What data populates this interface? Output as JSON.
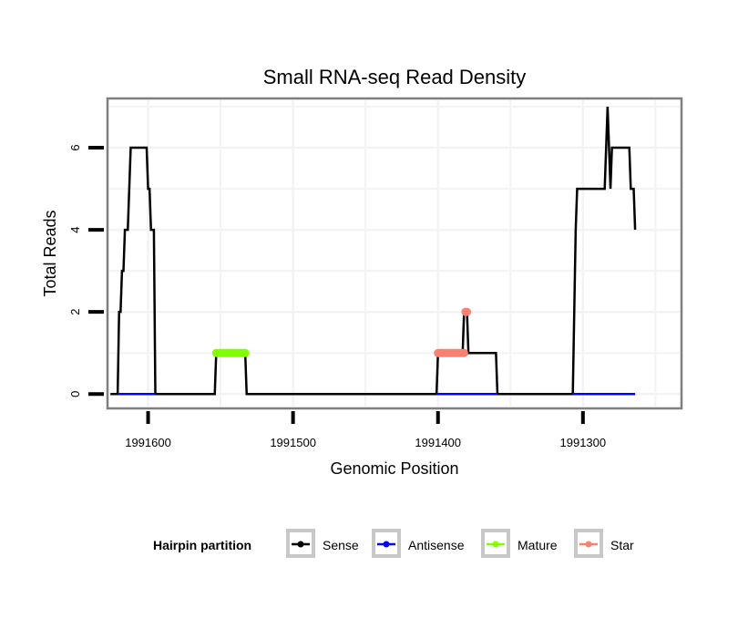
{
  "chart_data": {
    "type": "line",
    "title": "Small RNA-seq Read Density",
    "xlabel": "Genomic Position",
    "ylabel": "Total Reads",
    "x_reversed": true,
    "xlim": [
      1991628,
      1991232
    ],
    "ylim": [
      -0.35,
      7.2
    ],
    "xticks": [
      1991600,
      1991500,
      1991400,
      1991300
    ],
    "xtick_labels": [
      "1991600",
      "1991500",
      "1991400",
      "1991300"
    ],
    "yticks": [
      0,
      2,
      4,
      6
    ],
    "ytick_labels": [
      "0",
      "2",
      "4",
      "6"
    ],
    "grid": true,
    "legend": {
      "title": "Hairpin partition",
      "position": "bottom",
      "entries": [
        {
          "name": "Sense",
          "color": "#000000"
        },
        {
          "name": "Antisense",
          "color": "#0000ff"
        },
        {
          "name": "Mature",
          "color": "#80ff00"
        },
        {
          "name": "Star",
          "color": "#fa8072"
        }
      ]
    },
    "series": [
      {
        "name": "Sense",
        "color": "#000000",
        "points": [
          [
            1991626,
            0
          ],
          [
            1991621,
            0
          ],
          [
            1991620,
            2
          ],
          [
            1991619,
            2
          ],
          [
            1991618,
            3
          ],
          [
            1991617,
            3
          ],
          [
            1991616,
            4
          ],
          [
            1991614,
            4
          ],
          [
            1991612,
            6
          ],
          [
            1991601,
            6
          ],
          [
            1991600,
            5
          ],
          [
            1991599,
            5
          ],
          [
            1991598,
            4
          ],
          [
            1991596,
            4
          ],
          [
            1991595,
            0
          ],
          [
            1991554,
            0
          ],
          [
            1991553,
            1
          ],
          [
            1991533,
            1
          ],
          [
            1991532,
            0
          ],
          [
            1991401,
            0
          ],
          [
            1991400,
            1
          ],
          [
            1991383,
            1
          ],
          [
            1991382,
            2
          ],
          [
            1991380,
            2
          ],
          [
            1991379,
            1
          ],
          [
            1991360,
            1
          ],
          [
            1991359,
            0
          ],
          [
            1991307,
            0
          ],
          [
            1991305,
            4
          ],
          [
            1991304,
            5
          ],
          [
            1991285,
            5
          ],
          [
            1991283,
            7
          ],
          [
            1991281,
            5
          ],
          [
            1991280,
            6
          ],
          [
            1991268,
            6
          ],
          [
            1991267,
            5
          ],
          [
            1991265,
            5
          ],
          [
            1991264,
            4
          ]
        ]
      },
      {
        "name": "Antisense",
        "color": "#0000ff",
        "points": [
          [
            1991621,
            0
          ],
          [
            1991595,
            0
          ],
          [
            1991401,
            0
          ],
          [
            1991359,
            0
          ],
          [
            1991307,
            0
          ],
          [
            1991264,
            0
          ]
        ]
      },
      {
        "name": "Mature",
        "color": "#80ff00",
        "points": [
          [
            1991553,
            1
          ],
          [
            1991533,
            1
          ]
        ]
      },
      {
        "name": "Star",
        "color": "#fa8072",
        "points": [
          [
            1991400,
            1
          ],
          [
            1991382,
            1
          ],
          [
            1991381,
            2
          ],
          [
            1991380,
            2
          ]
        ]
      }
    ]
  }
}
